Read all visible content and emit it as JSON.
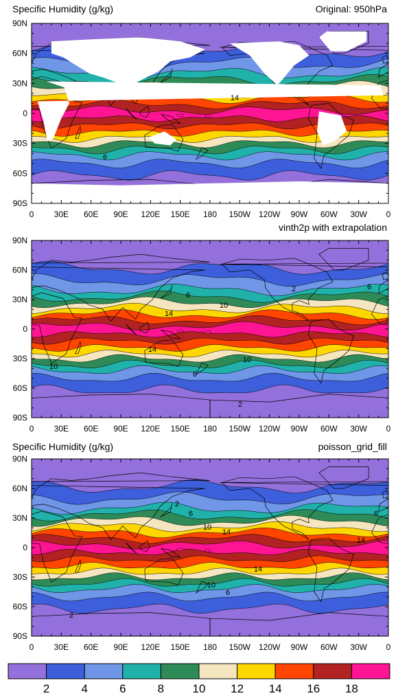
{
  "panels": [
    {
      "left_title": "Specific Humidity (g/kg)",
      "right_title": "Original: 950hPa",
      "contour_labels": [
        "14",
        "6"
      ]
    },
    {
      "left_title": "",
      "right_title": "vinth2p with extrapolation",
      "contour_labels": [
        "6",
        "10",
        "14",
        "14",
        "10",
        "10",
        "6",
        "2",
        "2",
        "6"
      ]
    },
    {
      "left_title": "Specific Humidity (g/kg)",
      "right_title": "poisson_grid_fill",
      "contour_labels": [
        "2",
        "6",
        "10",
        "14",
        "14",
        "14",
        "10",
        "6",
        "2",
        "6"
      ]
    }
  ],
  "lat_labels": [
    "90N",
    "60N",
    "30N",
    "0",
    "30S",
    "60S",
    "90S"
  ],
  "lon_labels": [
    "0",
    "30E",
    "60E",
    "90E",
    "120E",
    "150E",
    "180",
    "150W",
    "120W",
    "90W",
    "60W",
    "30W",
    "0"
  ],
  "colorbar": {
    "labels": [
      "2",
      "4",
      "6",
      "8",
      "10",
      "12",
      "14",
      "16",
      "18"
    ],
    "colors": [
      "#9370db",
      "#3d5fdc",
      "#7096e8",
      "#20b2aa",
      "#2e8b57",
      "#f5e6c0",
      "#ffd700",
      "#ff4500",
      "#b22222",
      "#ff1493"
    ]
  },
  "chart_data": {
    "type": "heatmap",
    "variable": "Specific Humidity (g/kg)",
    "level": "950hPa",
    "panels": [
      "Original: 950hPa",
      "vinth2p with extrapolation",
      "poisson_grid_fill"
    ],
    "contour_levels": [
      2,
      4,
      6,
      8,
      10,
      12,
      14,
      16,
      18
    ],
    "lat_ticks": [
      90,
      60,
      30,
      0,
      -30,
      -60,
      -90
    ],
    "lon_ticks": [
      0,
      30,
      60,
      90,
      120,
      150,
      180,
      210,
      240,
      270,
      300,
      330,
      360
    ],
    "xlim": [
      0,
      360
    ],
    "ylim": [
      -90,
      90
    ]
  }
}
